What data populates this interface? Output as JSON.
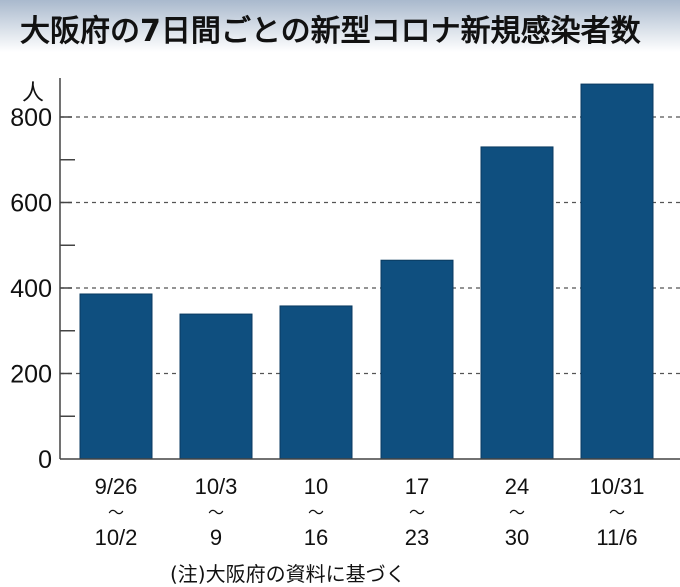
{
  "title": "大阪府の7日間ごとの新型コロナ新規感染者数",
  "note": "(注)大阪府の資料に基づく",
  "chart_data": {
    "type": "bar",
    "title": "大阪府の7日間ごとの新型コロナ新規感染者数",
    "ylabel": "人",
    "ylim": [
      0,
      880
    ],
    "yticks": [
      0,
      200,
      400,
      600,
      800
    ],
    "grid": true,
    "bar_color": "#0f4f7f",
    "categories": [
      {
        "from": "9/26",
        "sep": "～",
        "to": "10/2"
      },
      {
        "from": "10/3",
        "sep": "～",
        "to": "9"
      },
      {
        "from": "10",
        "sep": "～",
        "to": "16"
      },
      {
        "from": "17",
        "sep": "～",
        "to": "23"
      },
      {
        "from": "24",
        "sep": "～",
        "to": "30"
      },
      {
        "from": "10/31",
        "sep": "～",
        "to": "11/6"
      }
    ],
    "values": [
      386,
      339,
      358,
      465,
      730,
      877
    ]
  }
}
